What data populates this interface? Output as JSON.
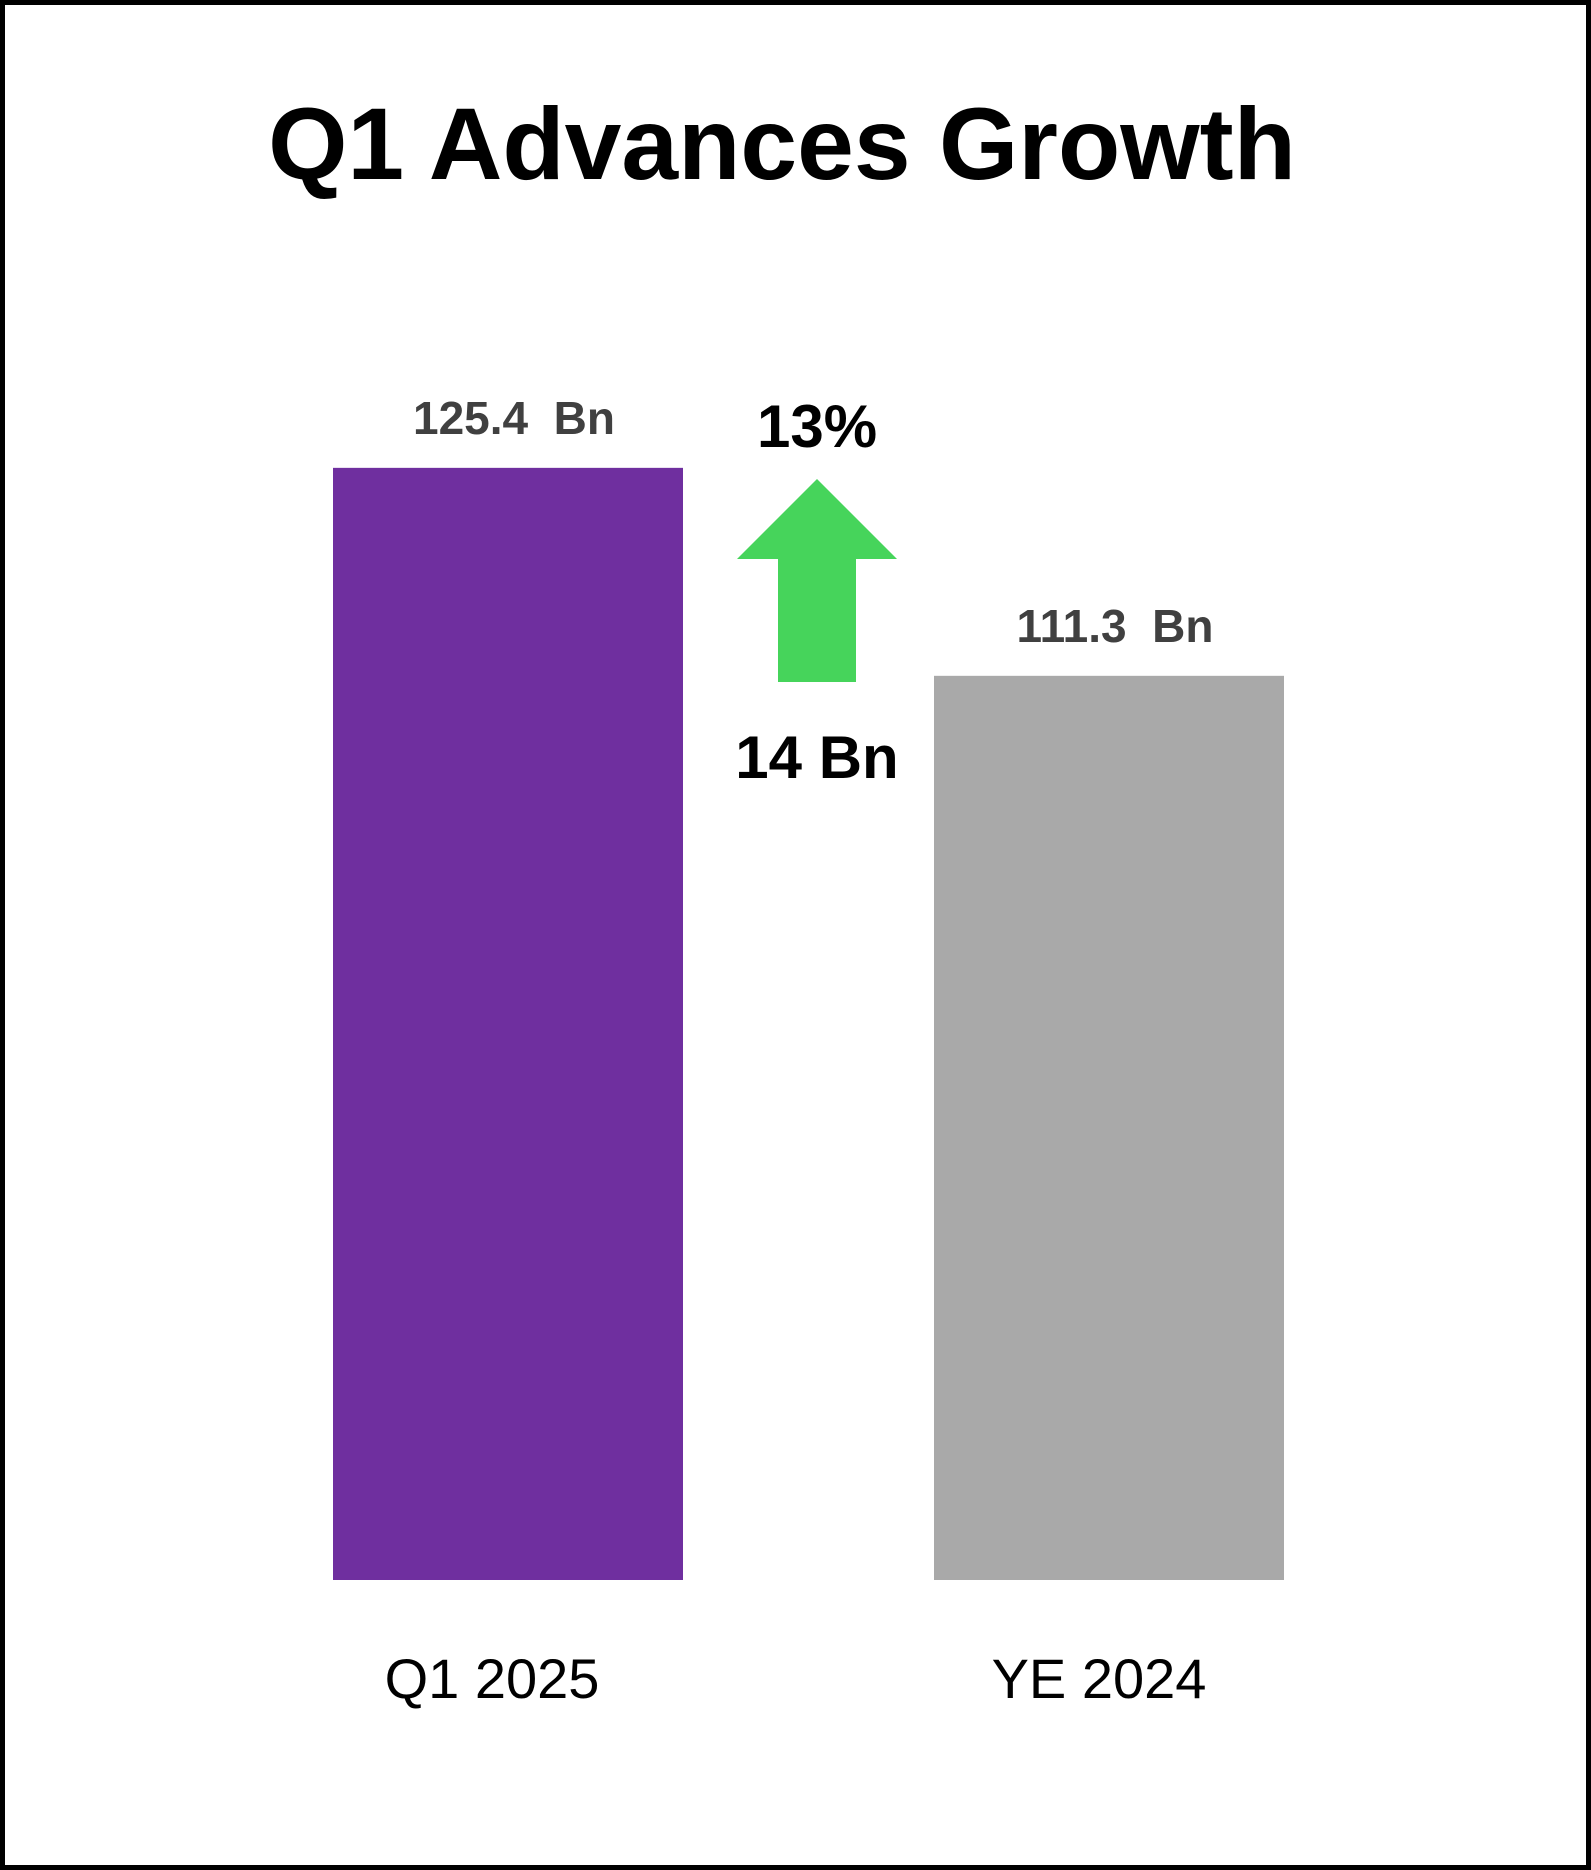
{
  "chart_data": {
    "type": "bar",
    "title": "Q1 Advances Growth",
    "categories": [
      "Q1 2025",
      "YE 2024"
    ],
    "values": [
      125.4,
      111.3
    ],
    "data_labels": [
      "125.4  Bn",
      "111.3  Bn"
    ],
    "colors": [
      "#6f2f9f",
      "#a9a9a9"
    ],
    "ylim": [
      50,
      130
    ],
    "xlabel": "",
    "ylabel": "",
    "grid": false,
    "annotations": {
      "change_percent": "13%",
      "change_absolute": "14 Bn",
      "arrow_direction": "up",
      "arrow_color": "#46d45b"
    }
  }
}
